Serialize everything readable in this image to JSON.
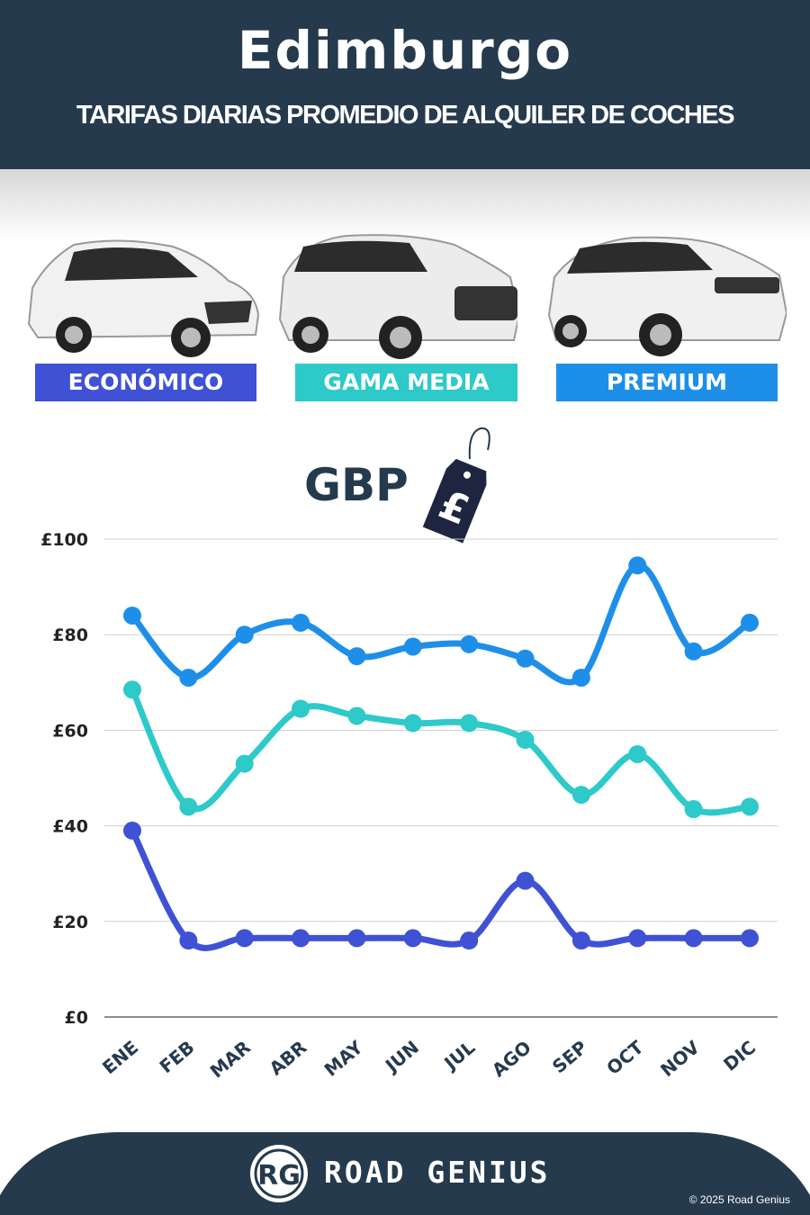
{
  "header": {
    "title": "Edimburgo",
    "subtitle": "TARIFAS DIARIAS PROMEDIO DE ALQUILER DE COCHES"
  },
  "categories": [
    {
      "label": "ECONÓMICO",
      "color": "#3f51d4"
    },
    {
      "label": "GAMA MEDIA",
      "color": "#2ec9c9"
    },
    {
      "label": "PREMIUM",
      "color": "#1e8fe8"
    }
  ],
  "currency": {
    "label": "GBP",
    "tag_symbol": "£"
  },
  "chart_data": {
    "type": "line",
    "title": "",
    "xlabel": "",
    "ylabel": "",
    "ylim": [
      0,
      100
    ],
    "grid": true,
    "categories": [
      "ENE",
      "FEB",
      "MAR",
      "ABR",
      "MAY",
      "JUN",
      "JUL",
      "AGO",
      "SEP",
      "OCT",
      "NOV",
      "DIC"
    ],
    "yticks": [
      "£0",
      "£20",
      "£40",
      "£60",
      "£80",
      "£100"
    ],
    "ytick_values": [
      0,
      20,
      40,
      60,
      80,
      100
    ],
    "series": [
      {
        "name": "PREMIUM",
        "color": "#1e8fe8",
        "values": [
          84,
          71,
          80,
          82.5,
          75.5,
          77.5,
          78,
          75,
          71,
          94.5,
          76.5,
          82.5
        ]
      },
      {
        "name": "GAMA MEDIA",
        "color": "#2ec9c9",
        "values": [
          68.5,
          44,
          53,
          64.5,
          63,
          61.5,
          61.5,
          58,
          46.5,
          55,
          43.5,
          44
        ]
      },
      {
        "name": "ECONÓMICO",
        "color": "#3f51d4",
        "values": [
          39,
          16,
          16.5,
          16.5,
          16.5,
          16.5,
          16,
          28.5,
          16,
          16.5,
          16.5,
          16.5
        ]
      }
    ]
  },
  "footer": {
    "logo_text": "RG",
    "brand": "ROAD GENIUS",
    "copyright": "© 2025 Road Genius",
    "background": "#253a4d"
  }
}
